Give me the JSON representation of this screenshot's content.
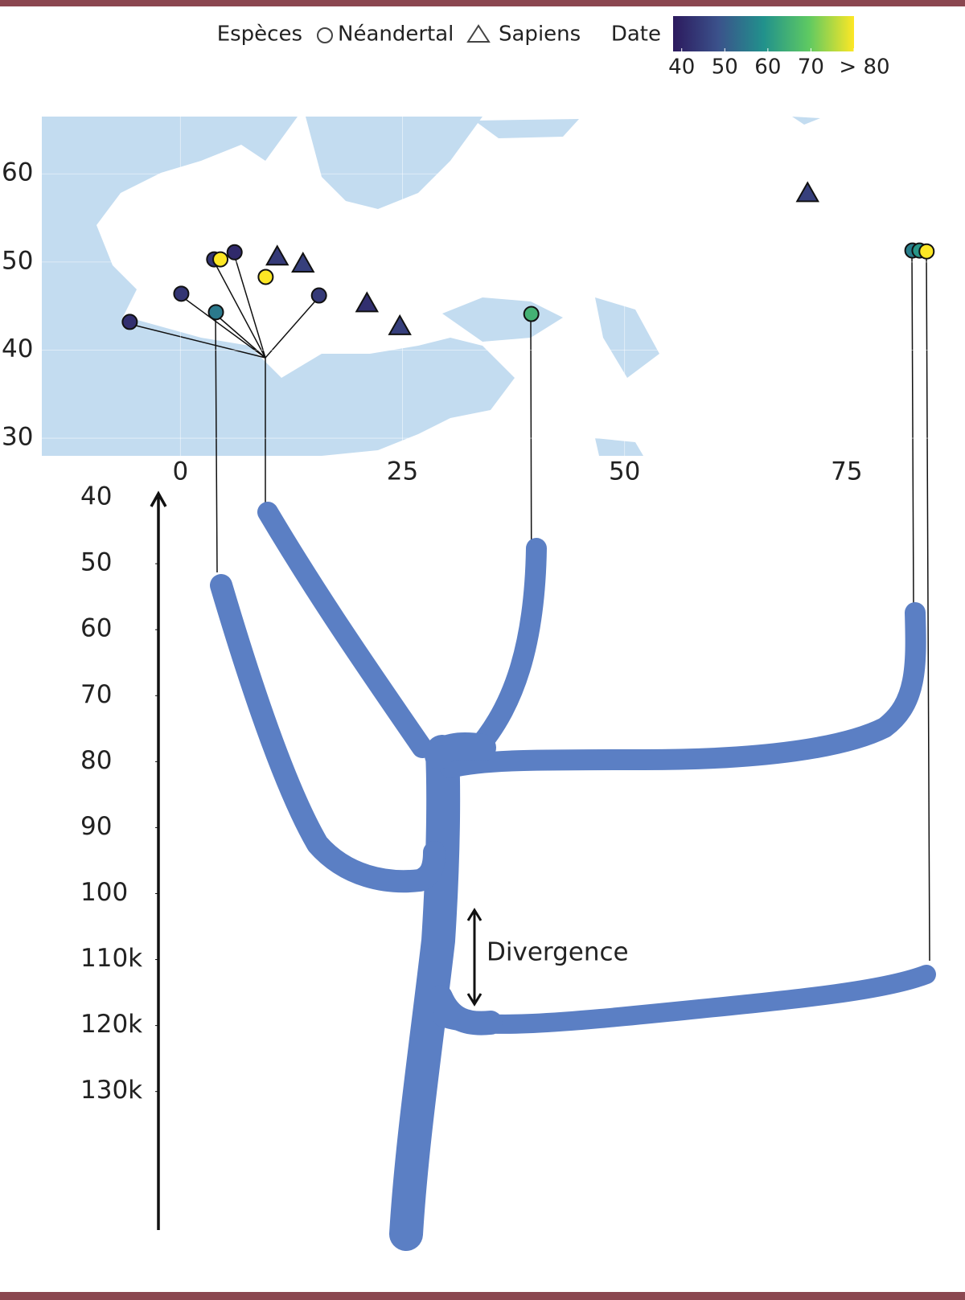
{
  "chart_data": [
    {
      "type": "scatter",
      "legend_title": "Espèces",
      "series": [
        {
          "name": "Néandertal",
          "marker": "circle",
          "x": [
            -5.7,
            0.1,
            4.0,
            3.8,
            4.5,
            6.1,
            9.6,
            15.6,
            39.5,
            82.4,
            83.2,
            84.0
          ],
          "y": [
            43.2,
            46.4,
            44.3,
            50.3,
            50.3,
            51.1,
            48.3,
            46.2,
            44.1,
            51.3,
            51.3,
            51.2
          ],
          "date": [
            42,
            43,
            55,
            43,
            80,
            41,
            80,
            44,
            65,
            56,
            60,
            80
          ]
        },
        {
          "name": "Sapiens",
          "marker": "triangle",
          "x": [
            10.9,
            13.8,
            21.0,
            24.7,
            70.6
          ],
          "y": [
            50.6,
            49.8,
            45.3,
            42.7,
            57.8
          ],
          "date": [
            44,
            45,
            42,
            45,
            45
          ]
        }
      ],
      "colorbar": {
        "title": "Date",
        "colormap": "viridis",
        "lim": [
          38,
          80
        ],
        "ticks": [
          40,
          50,
          60,
          70,
          {
            "value": 80,
            "label": "> 80"
          }
        ]
      },
      "xlim": [
        -15.6,
        84.7
      ],
      "xticks": [
        0,
        25,
        50,
        75
      ],
      "ylim": [
        28,
        66.5
      ],
      "yticks": [
        30,
        40,
        50,
        60
      ]
    },
    {
      "type": "tree",
      "ylim": [
        39.5,
        151
      ],
      "yticks": [
        40,
        50,
        60,
        70,
        80,
        90,
        100,
        {
          "value": 110,
          "label": "110k"
        },
        {
          "value": 120,
          "label": "120k"
        },
        {
          "value": 130,
          "label": "130k"
        }
      ],
      "annotation": "Divergence"
    }
  ]
}
